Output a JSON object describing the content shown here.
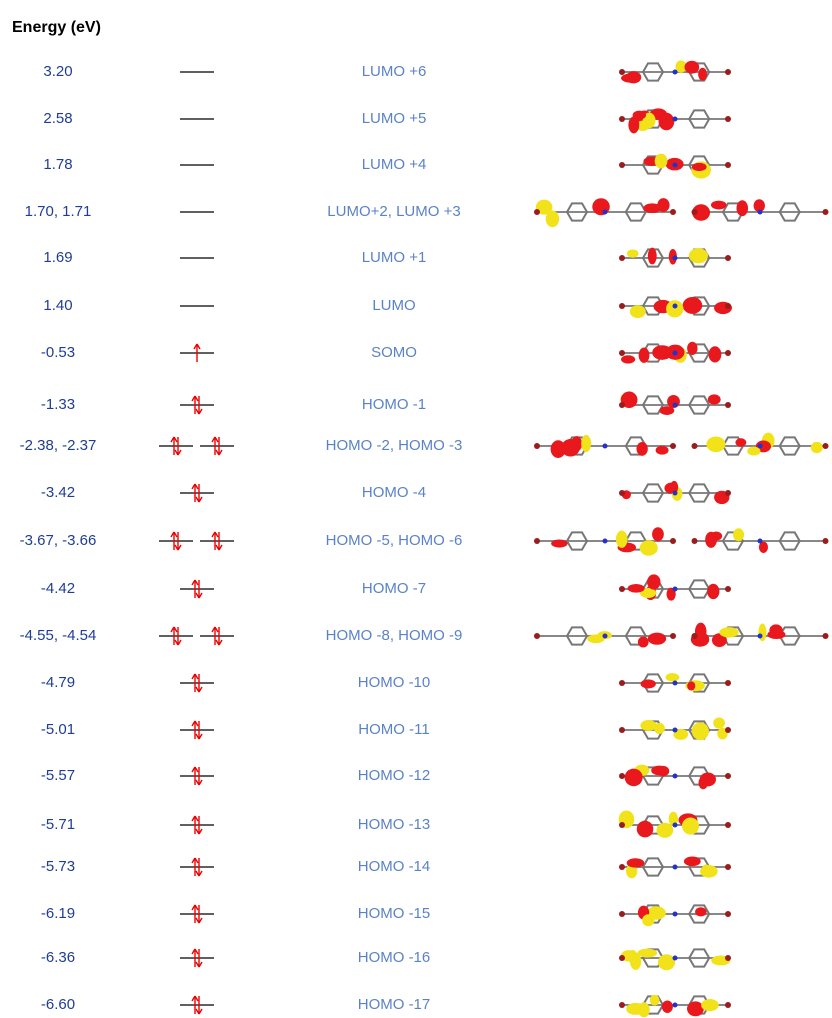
{
  "header": {
    "title": "Energy (eV)"
  },
  "rows": [
    {
      "energy": "3.20",
      "orbital": "LUMO +6"
    },
    {
      "energy": "2.58",
      "orbital": "LUMO +5"
    },
    {
      "energy": "1.78",
      "orbital": "LUMO +4"
    },
    {
      "energy": "1.70, 1.71",
      "orbital": "LUMO+2, LUMO +3"
    },
    {
      "energy": "1.69",
      "orbital": "LUMO +1"
    },
    {
      "energy": "1.40",
      "orbital": "LUMO"
    },
    {
      "energy": "-0.53",
      "orbital": "SOMO"
    },
    {
      "energy": "-1.33",
      "orbital": "HOMO -1"
    },
    {
      "energy": "-2.38, -2.37",
      "orbital": "HOMO -2, HOMO -3"
    },
    {
      "energy": "-3.42",
      "orbital": "HOMO -4"
    },
    {
      "energy": "-3.67, -3.66",
      "orbital": "HOMO -5, HOMO -6"
    },
    {
      "energy": "-4.42",
      "orbital": "HOMO -7"
    },
    {
      "energy": "-4.55, -4.54",
      "orbital": "HOMO -8, HOMO -9"
    },
    {
      "energy": "-4.79",
      "orbital": "HOMO -10"
    },
    {
      "energy": "-5.01",
      "orbital": "HOMO -11"
    },
    {
      "energy": "-5.57",
      "orbital": "HOMO -12"
    },
    {
      "energy": "-5.71",
      "orbital": "HOMO -13"
    },
    {
      "energy": "-5.73",
      "orbital": "HOMO -14"
    },
    {
      "energy": "-6.19",
      "orbital": "HOMO -15"
    },
    {
      "energy": "-6.36",
      "orbital": "HOMO -16"
    },
    {
      "energy": "-6.60",
      "orbital": "HOMO -17"
    }
  ]
}
